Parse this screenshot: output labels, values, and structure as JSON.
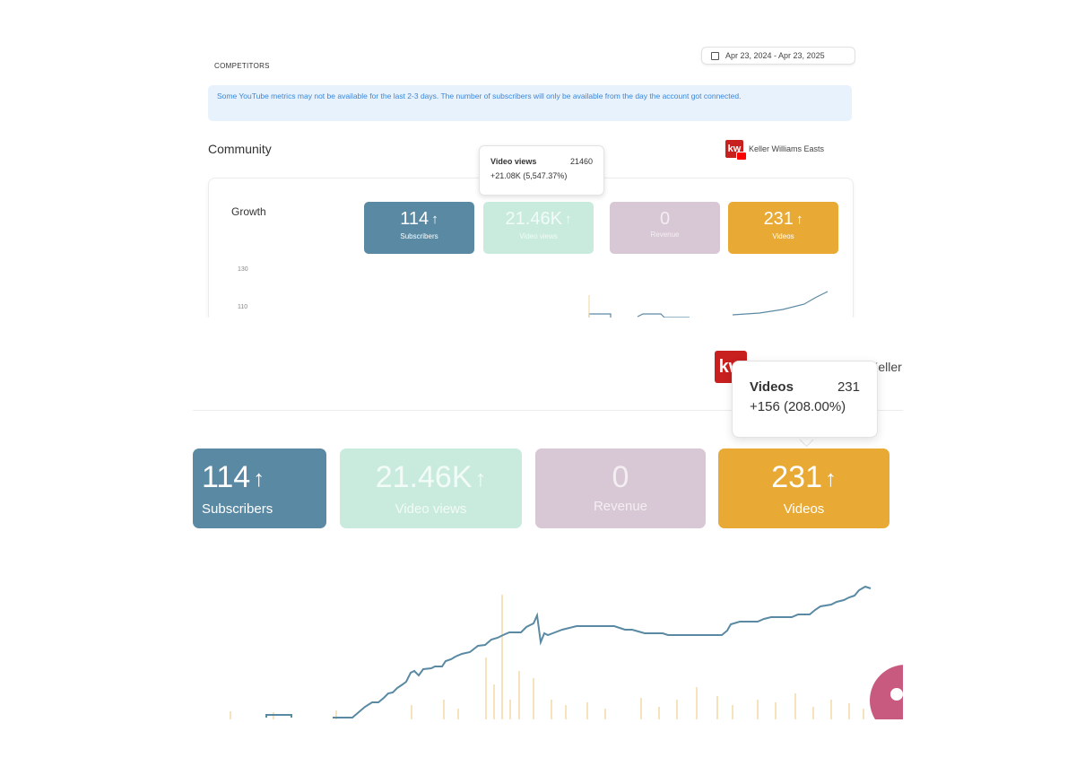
{
  "top": {
    "section_label": "COMPETITORS",
    "date_range": "Apr 23, 2024 - Apr 23, 2025",
    "notice": "Some YouTube metrics may not be available for the last 2-3 days. The number of subscribers will only be available from the day the account got connected.",
    "community_title": "Community",
    "account_name": "Keller Williams Easts",
    "logo_text": "kw",
    "growth_title": "Growth",
    "y_ticks": [
      "130",
      "110"
    ],
    "tooltip": {
      "metric": "Video views",
      "value": "21460",
      "change": "+21.08K (5,547.37%)"
    }
  },
  "stats": [
    {
      "value": "114",
      "label": "Subscribers",
      "trend": "up"
    },
    {
      "value": "21.46K",
      "label": "Video views",
      "trend": "up"
    },
    {
      "value": "0",
      "label": "Revenue",
      "trend": "none"
    },
    {
      "value": "231",
      "label": "Videos",
      "trend": "up"
    }
  ],
  "arrow_glyph": "↑",
  "bottom": {
    "account_name": "Keller Williams Easts",
    "logo_text": "kw",
    "tooltip": {
      "metric": "Videos",
      "value": "231",
      "change": "+156 (208.00%)"
    }
  },
  "colors": {
    "subscribers": "#5a8aa3",
    "video_views": "#c9ebdd",
    "revenue": "#d8c8d5",
    "videos": "#e8aa34",
    "line": "#5a8aa3",
    "bars": "#f0d49a",
    "notice_bg": "#e8f2fd",
    "notice_text": "#3a86d6"
  }
}
